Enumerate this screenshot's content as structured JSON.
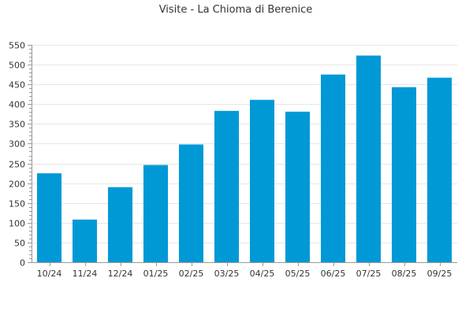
{
  "colors": {
    "bar": "#0099d6",
    "grid": "#e6e6e6",
    "axis": "#999999",
    "text": "#333333"
  },
  "chart_data": {
    "type": "bar",
    "title": "Visite - La Chioma di Berenice",
    "xlabel": "",
    "ylabel": "",
    "categories": [
      "10/24",
      "11/24",
      "12/24",
      "01/25",
      "02/25",
      "03/25",
      "04/25",
      "05/25",
      "06/25",
      "07/25",
      "08/25",
      "09/25"
    ],
    "values": [
      225,
      108,
      190,
      246,
      298,
      383,
      411,
      381,
      475,
      523,
      443,
      467
    ],
    "ylim": [
      0,
      550
    ],
    "yticks": [
      0,
      50,
      100,
      150,
      200,
      250,
      300,
      350,
      400,
      450,
      500,
      550
    ],
    "grid": true,
    "legend": "none"
  }
}
